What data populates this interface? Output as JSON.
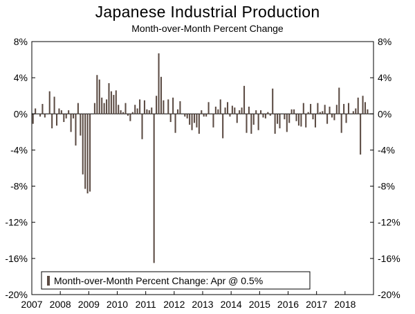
{
  "chart_data": {
    "type": "bar",
    "title": "Japanese Industrial Production",
    "subtitle": "Month-over-Month Percent Change",
    "xlabel": "",
    "ylabel": "",
    "ylim": [
      -20,
      8
    ],
    "y_ticks": [
      8,
      4,
      0,
      -4,
      -8,
      -12,
      -16,
      -20
    ],
    "y_tick_labels": [
      "8%",
      "4%",
      "0%",
      "-4%",
      "-8%",
      "-12%",
      "-16%",
      "-20%"
    ],
    "x_ticks": [
      "2007",
      "2008",
      "2009",
      "2010",
      "2011",
      "2012",
      "2013",
      "2014",
      "2015",
      "2016",
      "2017",
      "2018"
    ],
    "start": "2007-01",
    "legend": {
      "label": "Month-over-Month Percent Change: Apr @ 0.5%",
      "position": "bottom-left"
    },
    "series": [
      {
        "name": "Month-over-Month Percent Change",
        "color": "#5b4b43",
        "values": [
          -1.1,
          0.6,
          0.0,
          -0.3,
          1.1,
          -0.4,
          0.0,
          2.5,
          -1.6,
          1.9,
          -1.3,
          0.6,
          0.4,
          -0.9,
          -0.5,
          0.4,
          -2.0,
          -0.5,
          -3.5,
          1.2,
          -2.4,
          -6.7,
          -8.3,
          -8.8,
          -8.6,
          0.0,
          1.2,
          4.3,
          3.8,
          1.8,
          1.2,
          1.6,
          3.4,
          2.5,
          2.1,
          2.6,
          1.0,
          0.4,
          0.2,
          1.2,
          -0.2,
          -0.8,
          0.2,
          1.0,
          0.6,
          1.6,
          -2.8,
          1.5,
          0.5,
          0.4,
          0.7,
          -16.5,
          2.0,
          6.7,
          4.1,
          1.5,
          0.0,
          1.6,
          -0.9,
          1.8,
          -2.1,
          0.5,
          1.4,
          0.0,
          -0.3,
          -0.5,
          -1.2,
          -1.8,
          -1.0,
          -1.5,
          -2.2,
          0.4,
          -0.3,
          -0.3,
          1.3,
          0.0,
          -1.5,
          0.8,
          0.5,
          1.6,
          -2.7,
          0.7,
          1.3,
          -0.3,
          0.9,
          0.7,
          -1.0,
          0.4,
          0.7,
          3.1,
          -2.1,
          0.8,
          -2.2,
          -1.2,
          0.4,
          -1.8,
          0.4,
          -0.4,
          -0.5,
          0.2,
          -0.2,
          2.8,
          -2.2,
          -1.1,
          -1.6,
          0.0,
          -0.6,
          -2.0,
          -1.0,
          0.5,
          0.5,
          -0.8,
          -1.3,
          -1.4,
          1.2,
          -1.5,
          0.2,
          1.1,
          -0.6,
          -1.5,
          1.2,
          0.2,
          0.3,
          1.0,
          -1.1,
          0.8,
          -0.4,
          -0.7,
          1.0,
          2.9,
          -2.1,
          1.1,
          -1.0,
          1.2,
          0.0,
          0.3,
          0.6,
          1.8,
          -4.5,
          2.0,
          1.3,
          0.5
        ]
      }
    ]
  }
}
